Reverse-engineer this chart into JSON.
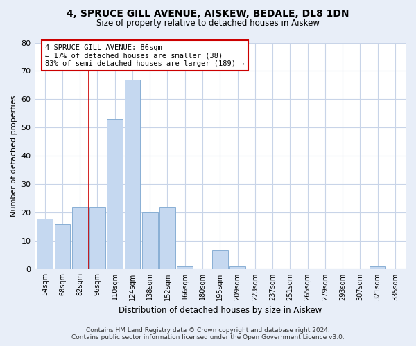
{
  "title": "4, SPRUCE GILL AVENUE, AISKEW, BEDALE, DL8 1DN",
  "subtitle": "Size of property relative to detached houses in Aiskew",
  "xlabel": "Distribution of detached houses by size in Aiskew",
  "ylabel": "Number of detached properties",
  "bar_labels": [
    "54sqm",
    "68sqm",
    "82sqm",
    "96sqm",
    "110sqm",
    "124sqm",
    "138sqm",
    "152sqm",
    "166sqm",
    "180sqm",
    "195sqm",
    "209sqm",
    "223sqm",
    "237sqm",
    "251sqm",
    "265sqm",
    "279sqm",
    "293sqm",
    "307sqm",
    "321sqm",
    "335sqm"
  ],
  "bar_values": [
    18,
    16,
    22,
    22,
    53,
    67,
    20,
    22,
    1,
    0,
    7,
    1,
    0,
    0,
    0,
    0,
    0,
    0,
    0,
    1,
    0
  ],
  "bar_color": "#c5d8f0",
  "bar_edge_color": "#89afd4",
  "ylim": [
    0,
    80
  ],
  "yticks": [
    0,
    10,
    20,
    30,
    40,
    50,
    60,
    70,
    80
  ],
  "vline_color": "#cc0000",
  "annotation_line1": "4 SPRUCE GILL AVENUE: 86sqm",
  "annotation_line2": "← 17% of detached houses are smaller (38)",
  "annotation_line3": "83% of semi-detached houses are larger (189) →",
  "annotation_box_color": "#ffffff",
  "annotation_box_edge": "#cc0000",
  "footer_line1": "Contains HM Land Registry data © Crown copyright and database right 2024.",
  "footer_line2": "Contains public sector information licensed under the Open Government Licence v3.0.",
  "background_color": "#e8eef8",
  "plot_background_color": "#ffffff",
  "grid_color": "#c8d4e8"
}
